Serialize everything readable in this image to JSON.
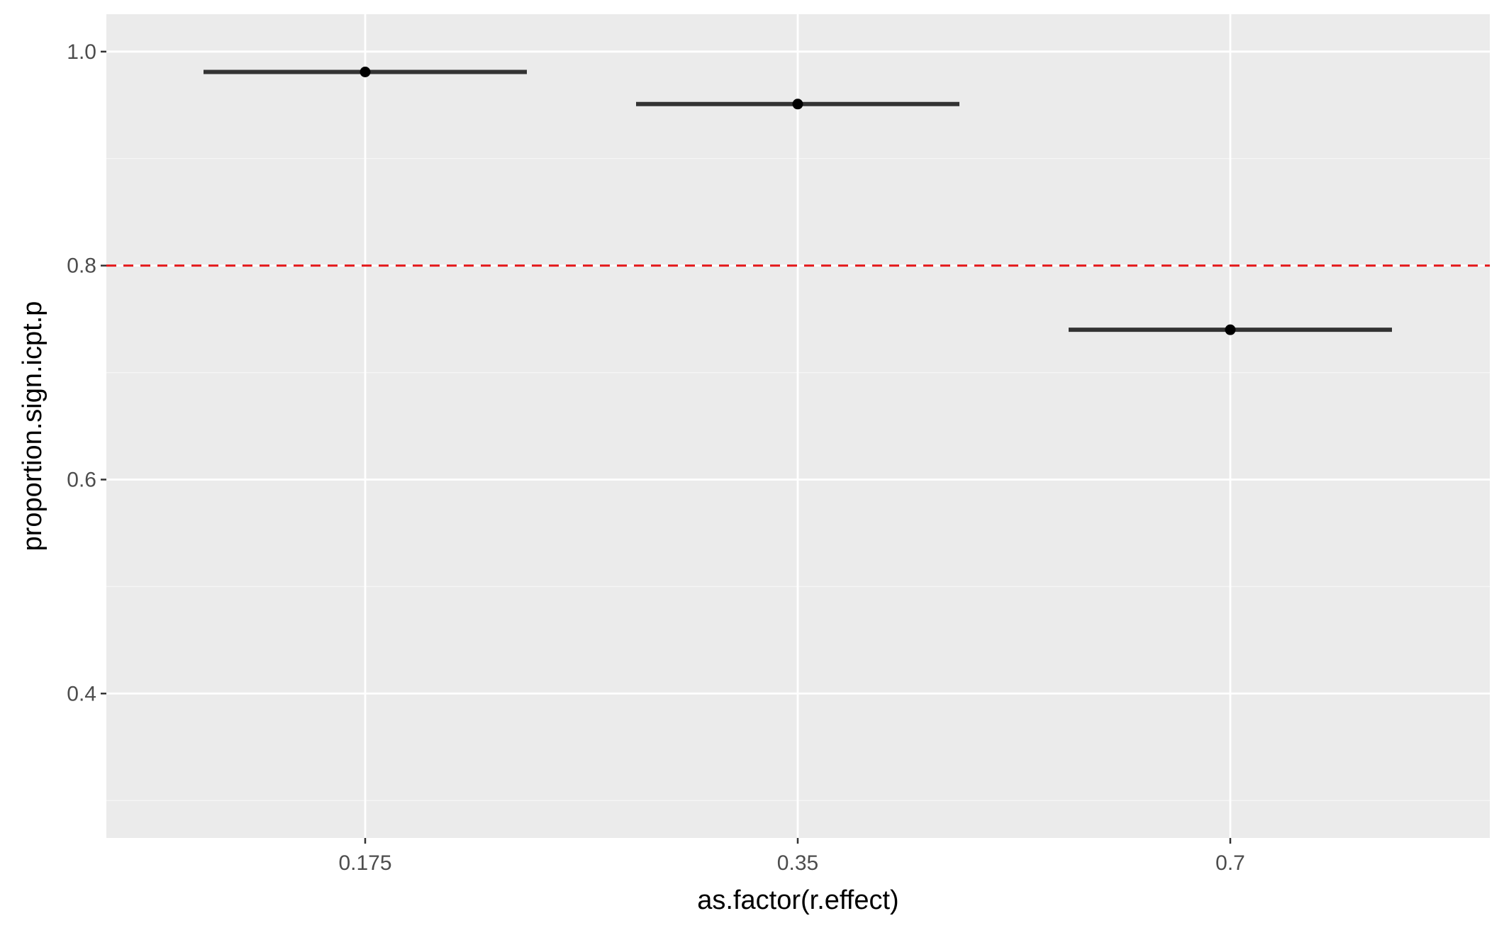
{
  "chart_data": {
    "type": "scatter",
    "geom": "point with horizontal bar per category",
    "xlabel": "as.factor(r.effect)",
    "ylabel": "proportion.sign.icpt.p",
    "categories": [
      "0.175",
      "0.35",
      "0.7"
    ],
    "values": [
      0.981,
      0.951,
      0.74
    ],
    "ylim": [
      0.265,
      1.035
    ],
    "y_ticks": [
      0.4,
      0.6,
      0.8,
      1.0
    ],
    "y_tick_labels": [
      "0.4",
      "0.6",
      "0.8",
      "1.0"
    ],
    "reference_line": {
      "y": 0.8,
      "style": "dashed",
      "color": "#e41a1c"
    },
    "grid": true,
    "legend": "none",
    "colors": {
      "panel_background": "#ebebeb",
      "grid_major": "#ffffff",
      "grid_minor": "#f5f5f5",
      "marks": "#333333",
      "point": "#000000",
      "tick_mark": "#333333"
    }
  }
}
